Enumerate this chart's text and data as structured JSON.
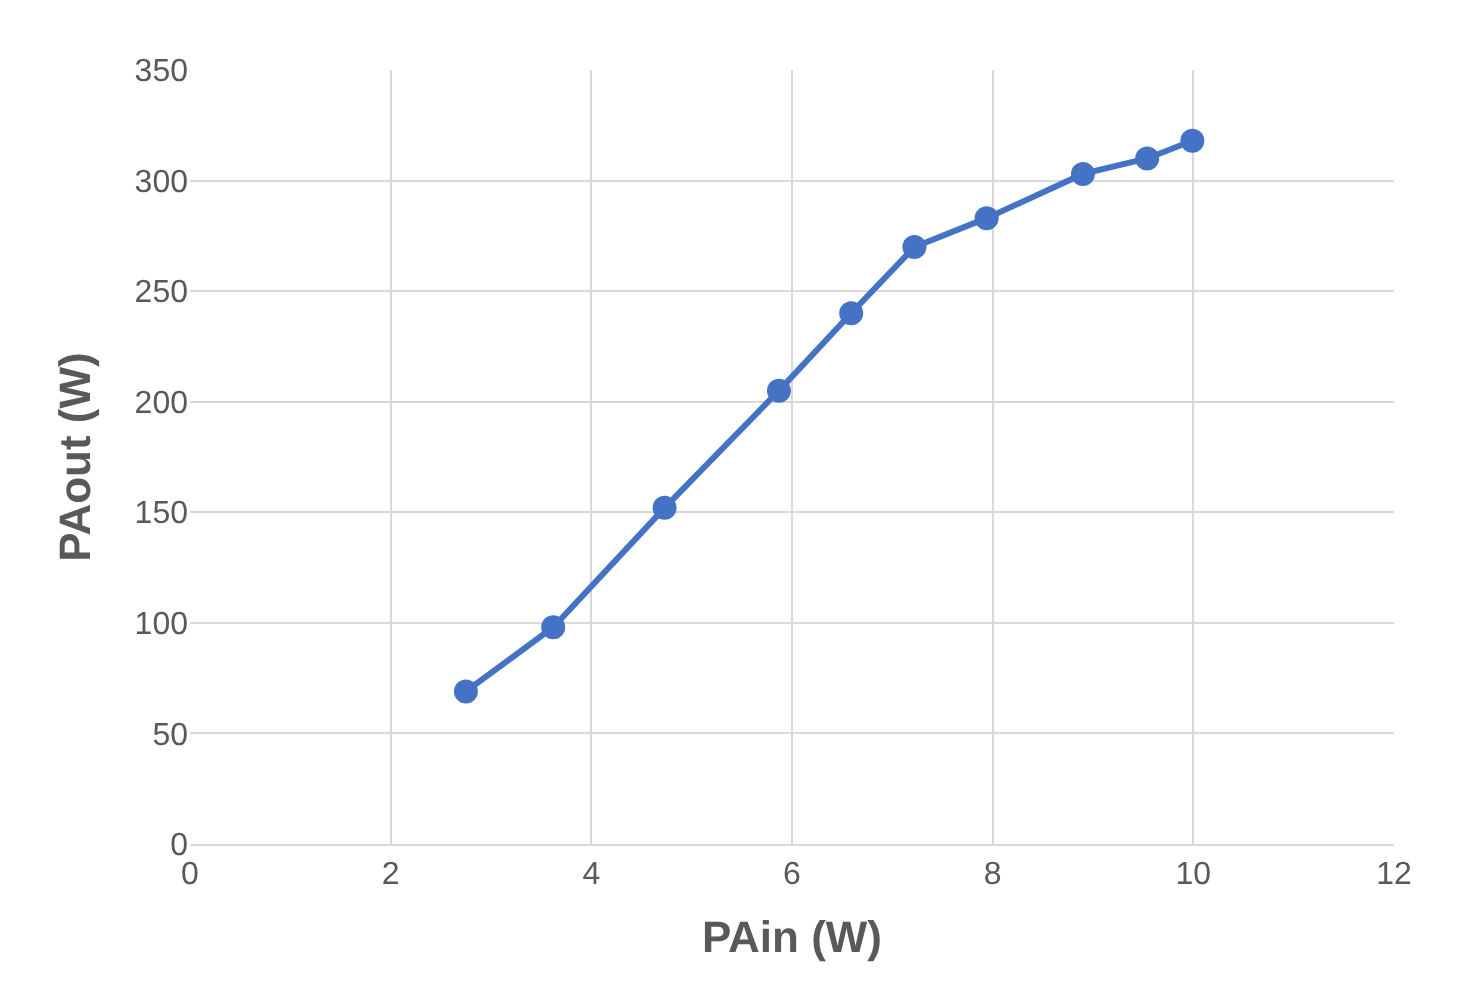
{
  "chart_data": {
    "type": "line",
    "xlabel": "PAin (W)",
    "ylabel": "PAout (W)",
    "x": [
      2.75,
      3.62,
      4.73,
      5.87,
      6.59,
      7.22,
      7.94,
      8.9,
      9.54,
      9.99
    ],
    "series": [
      {
        "color": "#4472c4",
        "values": [
          69,
          98,
          152,
          205,
          240,
          270,
          283,
          303,
          310,
          318
        ]
      }
    ],
    "xlim": [
      0,
      12
    ],
    "xticks": [
      0,
      2,
      4,
      6,
      8,
      10,
      12
    ],
    "ylim": [
      0,
      350
    ],
    "yticks": [
      0,
      50,
      100,
      150,
      200,
      250,
      300,
      350
    ],
    "grid": true,
    "legend": false,
    "marker": "circle",
    "line_style": "solid"
  }
}
